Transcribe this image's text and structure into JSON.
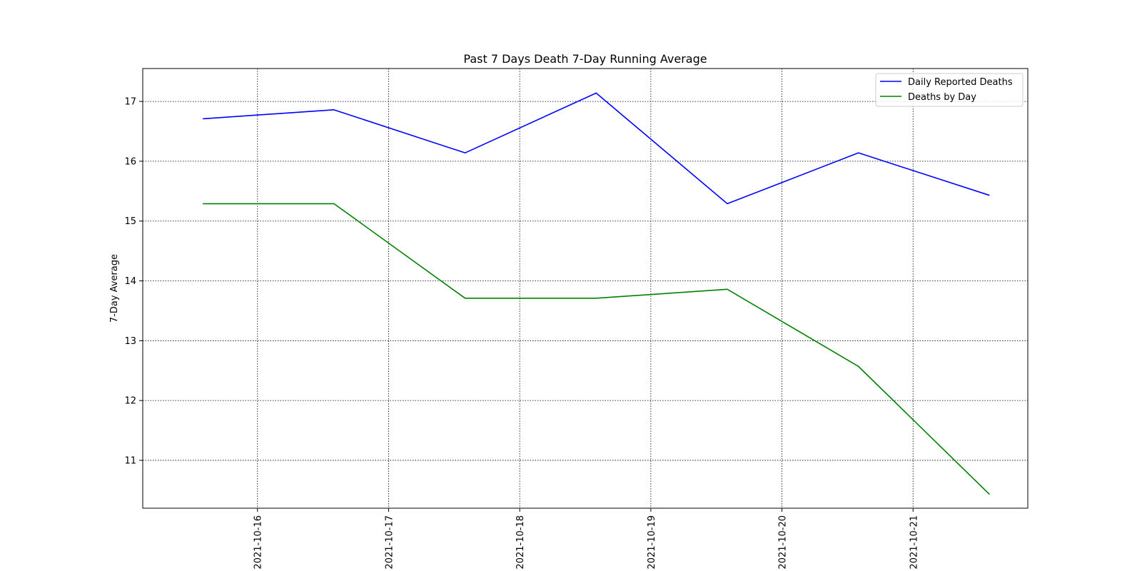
{
  "chart_data": {
    "type": "line",
    "title": "Past 7 Days Death 7-Day Running Average",
    "xlabel": "",
    "ylabel": "7-Day Average",
    "x": [
      "2021-10-15T14:00",
      "2021-10-16T14:00",
      "2021-10-17T14:00",
      "2021-10-18T14:00",
      "2021-10-19T14:00",
      "2021-10-20T14:00",
      "2021-10-21T14:00"
    ],
    "x_ticks": [
      "2021-10-16",
      "2021-10-17",
      "2021-10-18",
      "2021-10-19",
      "2021-10-20",
      "2021-10-21"
    ],
    "xlim": [
      "2021-10-15T03:00",
      "2021-10-21T21:00"
    ],
    "y_ticks": [
      11,
      12,
      13,
      14,
      15,
      16,
      17
    ],
    "ylim": [
      10.2,
      17.55
    ],
    "grid": true,
    "legend": "top-right",
    "series": [
      {
        "name": "Daily Reported Deaths",
        "color": "#0000ff",
        "values": [
          16.71,
          16.86,
          16.14,
          17.14,
          15.29,
          16.14,
          15.43
        ]
      },
      {
        "name": "Deaths by Day",
        "color": "#008000",
        "values": [
          15.29,
          15.29,
          13.71,
          13.71,
          13.86,
          12.57,
          10.43
        ]
      }
    ]
  }
}
